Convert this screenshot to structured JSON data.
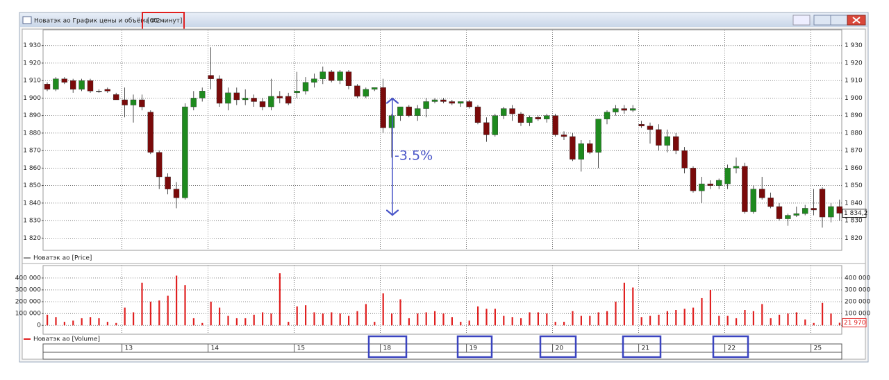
{
  "window": {
    "title": "Новатэк ао График цены и объёма #2 -",
    "interval": "[60 минут]"
  },
  "chart_data": [
    {
      "type": "candlestick",
      "legend": "Новатэк ао [Price]",
      "annotation": "-3.5%",
      "categories": [
        null,
        null,
        null,
        null,
        null,
        null,
        null,
        null,
        null,
        "13",
        null,
        null,
        null,
        null,
        null,
        null,
        null,
        null,
        null,
        "14",
        null,
        null,
        null,
        null,
        null,
        null,
        null,
        null,
        null,
        "15",
        null,
        null,
        null,
        null,
        null,
        null,
        null,
        null,
        null,
        "18",
        null,
        null,
        null,
        null,
        null,
        null,
        null,
        null,
        null,
        "19",
        null,
        null,
        null,
        null,
        null,
        null,
        null,
        null,
        null,
        "20",
        null,
        null,
        null,
        null,
        null,
        null,
        null,
        null,
        null,
        "21",
        null,
        null,
        null,
        null,
        null,
        null,
        null,
        null,
        null,
        "22",
        null,
        null,
        null,
        null,
        null,
        null,
        null,
        null,
        null,
        "25",
        null,
        null,
        null
      ],
      "open": [
        1908,
        1905,
        1911,
        1910,
        1905,
        1910,
        1904,
        1905,
        1902,
        1899,
        1896,
        1899,
        1892,
        1869,
        1855,
        1848,
        1843,
        1895,
        1900,
        1913,
        1911,
        1897,
        1903,
        1899,
        1900,
        1898,
        1895,
        1901,
        1901,
        1903,
        1904,
        1909,
        1911,
        1915,
        1910,
        1915,
        1907,
        1901,
        1905,
        1906,
        1883,
        1890,
        1895,
        1890,
        1894,
        1898,
        1899,
        1898,
        1897,
        1898,
        1895,
        1886,
        1879,
        1890,
        1894,
        1891,
        1886,
        1889,
        1888,
        1890,
        1879,
        1878,
        1865,
        1874,
        1869,
        1888,
        1892,
        1894,
        1893,
        1885,
        1884,
        1882,
        1873,
        1878,
        1870,
        1860,
        1847,
        1851,
        1850,
        1851,
        1860,
        1861,
        1835,
        1848,
        1843,
        1838,
        1831,
        1833,
        1834,
        1837,
        1848,
        1832,
        1838
      ],
      "high": [
        1909,
        1912,
        1912,
        1911,
        1911,
        1911,
        1905,
        1906,
        1903,
        1906,
        1902,
        1902,
        1893,
        1870,
        1857,
        1852,
        1897,
        1904,
        1906,
        1929,
        1913,
        1906,
        1906,
        1905,
        1902,
        1900,
        1911,
        1904,
        1903,
        1915,
        1912,
        1914,
        1918,
        1916,
        1916,
        1916,
        1908,
        1906,
        1906,
        1911,
        1891,
        1895,
        1896,
        1896,
        1900,
        1900,
        1900,
        1899,
        1898,
        1899,
        1896,
        1889,
        1891,
        1895,
        1896,
        1892,
        1890,
        1890,
        1891,
        1891,
        1881,
        1880,
        1876,
        1876,
        1888,
        1893,
        1896,
        1896,
        1896,
        1887,
        1886,
        1885,
        1882,
        1880,
        1872,
        1861,
        1855,
        1853,
        1854,
        1862,
        1866,
        1863,
        1850,
        1855,
        1846,
        1840,
        1834,
        1838,
        1839,
        1848,
        1849,
        1840,
        1842
      ],
      "low": [
        1904,
        1904,
        1908,
        1903,
        1904,
        1903,
        1903,
        1903,
        1899,
        1889,
        1886,
        1893,
        1868,
        1848,
        1845,
        1837,
        1842,
        1893,
        1898,
        1905,
        1895,
        1893,
        1896,
        1896,
        1895,
        1893,
        1893,
        1897,
        1896,
        1900,
        1902,
        1906,
        1908,
        1909,
        1908,
        1905,
        1900,
        1900,
        1904,
        1880,
        1866,
        1887,
        1889,
        1887,
        1889,
        1897,
        1897,
        1896,
        1895,
        1894,
        1885,
        1875,
        1878,
        1888,
        1887,
        1884,
        1884,
        1887,
        1886,
        1878,
        1876,
        1864,
        1858,
        1868,
        1860,
        1885,
        1890,
        1891,
        1892,
        1883,
        1874,
        1870,
        1869,
        1868,
        1857,
        1846,
        1840,
        1848,
        1848,
        1848,
        1857,
        1834,
        1834,
        1842,
        1837,
        1830,
        1827,
        1832,
        1833,
        1833,
        1826,
        1829,
        1830
      ],
      "close": [
        1905,
        1911,
        1909,
        1905,
        1910,
        1904,
        1904,
        1904,
        1899,
        1896,
        1899,
        1895,
        1869,
        1855,
        1848,
        1843,
        1895,
        1900,
        1904,
        1911,
        1897,
        1903,
        1899,
        1900,
        1898,
        1895,
        1901,
        1900,
        1897,
        1904,
        1909,
        1911,
        1915,
        1910,
        1915,
        1907,
        1901,
        1905,
        1906,
        1883,
        1890,
        1895,
        1890,
        1894,
        1898,
        1899,
        1898,
        1897,
        1898,
        1895,
        1886,
        1879,
        1890,
        1894,
        1891,
        1886,
        1889,
        1888,
        1890,
        1879,
        1878,
        1865,
        1874,
        1869,
        1888,
        1892,
        1894,
        1893,
        1894,
        1884,
        1882,
        1873,
        1878,
        1870,
        1860,
        1847,
        1851,
        1850,
        1853,
        1860,
        1861,
        1835,
        1848,
        1843,
        1838,
        1831,
        1833,
        1834,
        1837,
        1836,
        1832,
        1838,
        1834.2
      ],
      "up_color": "#1e8a1e",
      "down_color": "#7a0a0a",
      "ylim": [
        1813,
        1939
      ],
      "yticks": [
        {
          "value": 1820,
          "label": "1 820"
        },
        {
          "value": 1830,
          "label": "1 830"
        },
        {
          "value": 1840,
          "label": "1 840"
        },
        {
          "value": 1850,
          "label": "1 850"
        },
        {
          "value": 1860,
          "label": "1 860"
        },
        {
          "value": 1870,
          "label": "1 870"
        },
        {
          "value": 1880,
          "label": "1 880"
        },
        {
          "value": 1890,
          "label": "1 890"
        },
        {
          "value": 1900,
          "label": "1 900"
        },
        {
          "value": 1910,
          "label": "1 910"
        },
        {
          "value": 1920,
          "label": "1 920"
        },
        {
          "value": 1930,
          "label": "1 930"
        }
      ],
      "last_price": {
        "value": 1834.2,
        "label": "1 834,2"
      },
      "grid": true
    },
    {
      "type": "bar",
      "series": [
        {
          "name": "Новатэк ао [Volume]",
          "color": "#e02020",
          "values": [
            90000,
            70000,
            30000,
            40000,
            60000,
            70000,
            60000,
            30000,
            20000,
            150000,
            110000,
            360000,
            200000,
            210000,
            250000,
            420000,
            340000,
            60000,
            20000,
            200000,
            150000,
            80000,
            60000,
            60000,
            90000,
            110000,
            100000,
            440000,
            30000,
            160000,
            170000,
            110000,
            100000,
            110000,
            100000,
            80000,
            120000,
            180000,
            30000,
            270000,
            100000,
            220000,
            60000,
            100000,
            110000,
            120000,
            100000,
            70000,
            30000,
            40000,
            160000,
            140000,
            140000,
            80000,
            70000,
            60000,
            110000,
            110000,
            100000,
            30000,
            30000,
            120000,
            80000,
            80000,
            110000,
            120000,
            200000,
            360000,
            320000,
            70000,
            80000,
            90000,
            120000,
            130000,
            140000,
            150000,
            230000,
            300000,
            80000,
            80000,
            60000,
            130000,
            120000,
            180000,
            60000,
            90000,
            100000,
            110000,
            50000,
            20000,
            190000,
            100000,
            21970
          ]
        }
      ],
      "ylim": [
        -75000,
        505000
      ],
      "yticks": [
        0,
        {
          "value": 100000,
          "label": "100 000"
        },
        {
          "value": 200000,
          "label": "200 000"
        },
        {
          "value": 300000,
          "label": "300 000"
        },
        {
          "value": 400000,
          "label": "400 000"
        }
      ],
      "last_value": {
        "value": 21970,
        "label": "21 970"
      },
      "grid": true
    }
  ]
}
